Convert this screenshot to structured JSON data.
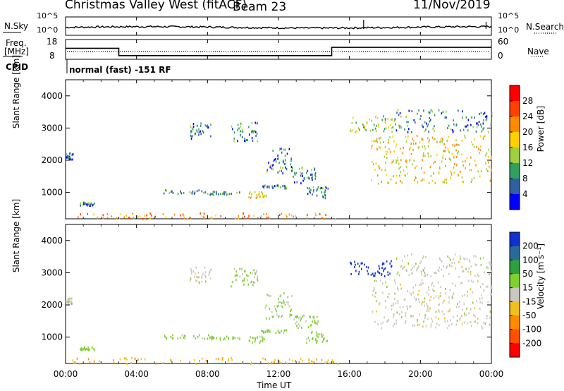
{
  "header": {
    "station": "Christmas Valley West (fitACF)",
    "beam": "Beam 23",
    "date": "11/Nov/2019"
  },
  "panels": {
    "nsky_label": "N.Sky",
    "nsearch_label": "N.Search",
    "freq_label_line1": "Freq.",
    "freq_label_line2": "[MHz]",
    "nave_label": "Nave",
    "cpid_label": "CPID",
    "cpid_text": "normal (fast) -151 RF",
    "noise_left_ticks": [
      "10^5",
      "10^0"
    ],
    "noise_right_ticks": [
      "10^5",
      "10^0"
    ],
    "freq_left_ticks": [
      "18",
      "8"
    ],
    "freq_right_ticks": [
      "60",
      "0"
    ]
  },
  "colorbars": {
    "power": {
      "label": "Power [dB]",
      "ticks": [
        "28",
        "24",
        "20",
        "16",
        "12",
        "8",
        "4"
      ],
      "colors": [
        "#ff0000",
        "#ff4000",
        "#ff8c00",
        "#ffd000",
        "#a0d040",
        "#30a060",
        "#3060a0",
        "#0000ff"
      ]
    },
    "velocity": {
      "label": "Velocity [m s⁻¹]",
      "ticks": [
        "200",
        "100",
        "50",
        "15",
        "-15",
        "-50",
        "-100",
        "-200"
      ],
      "colors": [
        "#1030d0",
        "#2a6a9a",
        "#2ea040",
        "#80d030",
        "#c8c8c0",
        "#f0c020",
        "#ff8c00",
        "#ff5000",
        "#ff0000"
      ]
    }
  },
  "chart_data": {
    "type": "heatmap",
    "xlabel": "Time UT",
    "ylabel": "Slant Range [km]",
    "x_ticks": [
      "00:00",
      "04:00",
      "08:00",
      "12:00",
      "16:00",
      "20:00",
      "00:00"
    ],
    "y_ticks": [
      "1000",
      "2000",
      "3000",
      "4000"
    ],
    "xlim_hours": [
      0,
      24
    ],
    "ylim_km": [
      180,
      4500
    ],
    "frequency_steps": [
      {
        "start_hour": 0.0,
        "end_hour": 3.0,
        "freq_mhz": 14
      },
      {
        "start_hour": 3.0,
        "end_hour": 15.0,
        "freq_mhz": 10
      },
      {
        "start_hour": 15.0,
        "end_hour": 24.0,
        "freq_mhz": 14.5
      }
    ],
    "echo_regions": [
      {
        "t0": 0.0,
        "t1": 0.4,
        "r0": 2050,
        "r1": 2250,
        "power_db": 6,
        "velocity": 0
      },
      {
        "t0": 0.8,
        "t1": 1.6,
        "r0": 620,
        "r1": 720,
        "power_db": 8,
        "velocity": 30
      },
      {
        "t0": 0.3,
        "t1": 15.5,
        "r0": 200,
        "r1": 380,
        "power_db": 22,
        "velocity": -40
      },
      {
        "t0": 5.5,
        "t1": 8.2,
        "r0": 980,
        "r1": 1100,
        "power_db": 10,
        "velocity": 30
      },
      {
        "t0": 8.0,
        "t1": 9.8,
        "r0": 950,
        "r1": 1050,
        "power_db": 9,
        "velocity": 30
      },
      {
        "t0": 10.3,
        "t1": 11.3,
        "r0": 850,
        "r1": 1050,
        "power_db": 18,
        "velocity": 30
      },
      {
        "t0": 11.0,
        "t1": 12.5,
        "r0": 1150,
        "r1": 1250,
        "power_db": 8,
        "velocity": 30
      },
      {
        "t0": 7.0,
        "t1": 8.2,
        "r0": 2700,
        "r1": 3200,
        "power_db": 8,
        "velocity": 0
      },
      {
        "t0": 9.3,
        "t1": 10.8,
        "r0": 2600,
        "r1": 3200,
        "power_db": 8,
        "velocity": 20
      },
      {
        "t0": 11.2,
        "t1": 12.8,
        "r0": 1600,
        "r1": 2400,
        "power_db": 8,
        "velocity": 20
      },
      {
        "t0": 12.8,
        "t1": 14.2,
        "r0": 1300,
        "r1": 1800,
        "power_db": 8,
        "velocity": 20
      },
      {
        "t0": 13.5,
        "t1": 14.8,
        "r0": 850,
        "r1": 1200,
        "power_db": 8,
        "velocity": 30
      },
      {
        "t0": 16.0,
        "t1": 18.5,
        "r0": 2900,
        "r1": 3400,
        "power_db": 14,
        "velocity": 220
      },
      {
        "t0": 17.2,
        "t1": 24.0,
        "r0": 1300,
        "r1": 2800,
        "power_db": 18,
        "velocity": 0
      },
      {
        "t0": 18.5,
        "t1": 24.0,
        "r0": 2900,
        "r1": 3600,
        "power_db": 8,
        "velocity": 0
      }
    ]
  }
}
